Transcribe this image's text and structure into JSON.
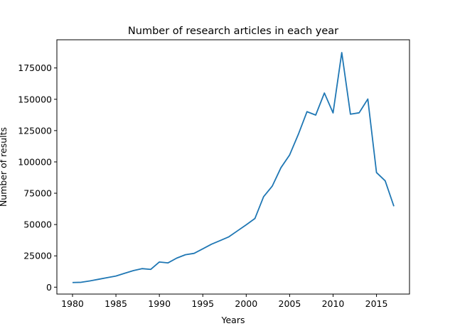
{
  "chart_data": {
    "type": "line",
    "title": "Number of research articles in each year",
    "xlabel": "Years",
    "ylabel": "Number of results",
    "xlim": [
      1978.2,
      2018.8
    ],
    "ylim": [
      -5500,
      197500
    ],
    "grid": false,
    "legend": "none",
    "line_color": "#1f77b4",
    "x_ticks": [
      1980,
      1985,
      1990,
      1995,
      2000,
      2005,
      2010,
      2015
    ],
    "y_ticks": [
      0,
      25000,
      50000,
      75000,
      100000,
      125000,
      150000,
      175000
    ],
    "series": [
      {
        "x": [
          1980,
          1981,
          1982,
          1983,
          1984,
          1985,
          1986,
          1987,
          1988,
          1989,
          1990,
          1991,
          1992,
          1993,
          1994,
          1995,
          1996,
          1997,
          1998,
          1999,
          2000,
          2001,
          2002,
          2003,
          2004,
          2005,
          2006,
          2007,
          2008,
          2009,
          2010,
          2011,
          2012,
          2013,
          2014,
          2015,
          2016,
          2017
        ],
        "y": [
          3700,
          3900,
          5000,
          6300,
          7600,
          8900,
          11100,
          13200,
          14800,
          14200,
          20100,
          19400,
          23200,
          25900,
          27000,
          30600,
          34300,
          37200,
          40200,
          45000,
          49800,
          54800,
          72200,
          80700,
          95400,
          105600,
          122000,
          140100,
          137400,
          155000,
          139100,
          187300,
          138100,
          139200,
          150200,
          91500,
          84900,
          64600
        ]
      }
    ]
  }
}
